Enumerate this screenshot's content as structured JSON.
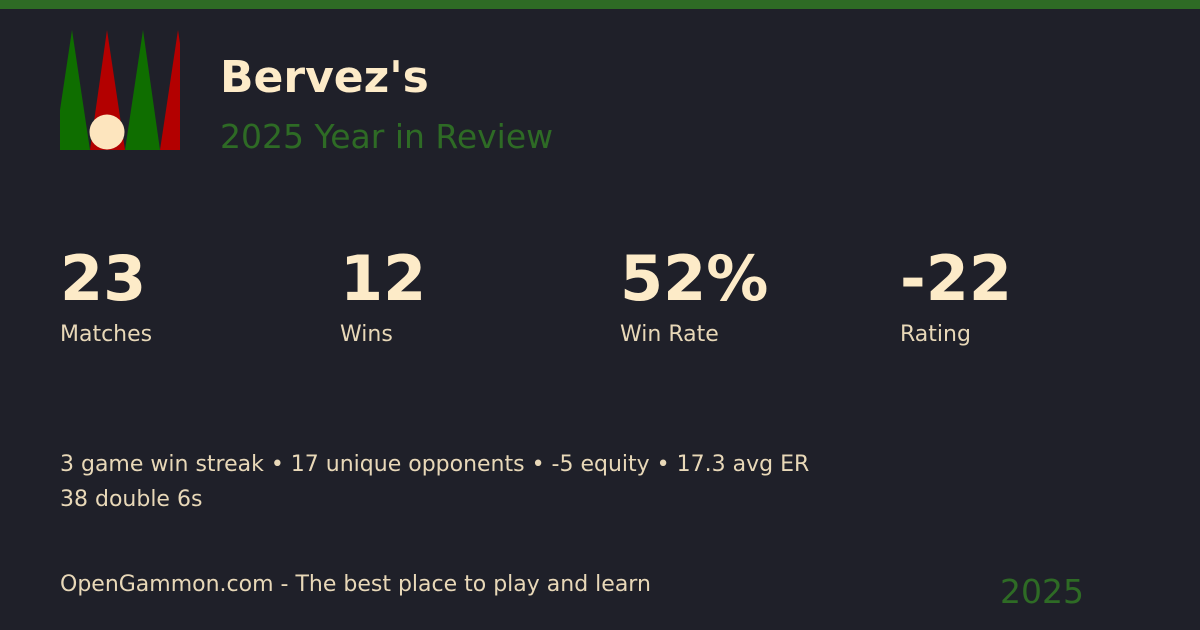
{
  "header": {
    "title": "Bervez's",
    "subtitle": "2025 Year in Review"
  },
  "colors": {
    "accent": "#2e6b25",
    "text": "#fdebc8",
    "background": "#1f2029",
    "logo_green": "#0f6e00",
    "logo_red": "#b30000"
  },
  "stats": [
    {
      "value": "23",
      "label": "Matches"
    },
    {
      "value": "12",
      "label": "Wins"
    },
    {
      "value": "52%",
      "label": "Win Rate"
    },
    {
      "value": "-22",
      "label": "Rating"
    }
  ],
  "highlights": {
    "line1": "3 game win streak • 17 unique opponents • -5 equity • 17.3 avg ER",
    "line2": "38 double 6s"
  },
  "footer": {
    "tagline": "OpenGammon.com - The best place to play and learn",
    "year": "2025"
  }
}
